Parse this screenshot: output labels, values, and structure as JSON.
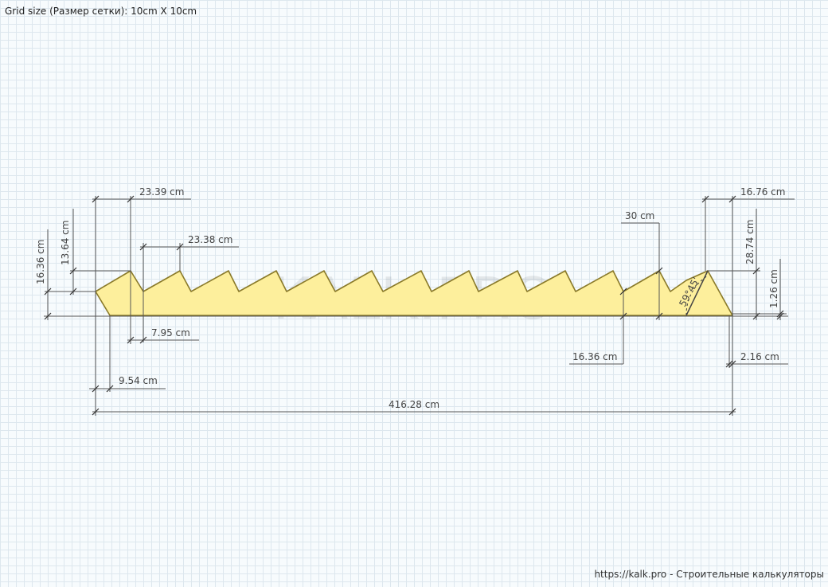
{
  "header": {
    "grid_size": "Grid size (Размер сетки): 10cm X 10cm"
  },
  "footer": {
    "text": "https://kalk.pro - Строительные калькуляторы"
  },
  "watermark": "KALK.PRO",
  "colors": {
    "shape_fill": "#fdef9c",
    "shape_stroke": "#8a7a2a",
    "dimension_line": "#555555",
    "grid_line": "#dde7ee"
  },
  "dimensions": {
    "total_length": "416.28 cm",
    "first_tooth_width": "23.39 cm",
    "tooth_step": "23.38 cm",
    "left_height": "16.36 cm",
    "left_tooth_height": "13.64 cm",
    "gap_bottom": "7.95 cm",
    "left_offset": "9.54 cm",
    "right_spacing": "30 cm",
    "right_tooth_height": "16.36 cm",
    "right_top_width": "16.76 cm",
    "right_height": "28.74 cm",
    "right_small_height": "1.26 cm",
    "right_offset": "2.16 cm",
    "angle": "59°45'"
  }
}
